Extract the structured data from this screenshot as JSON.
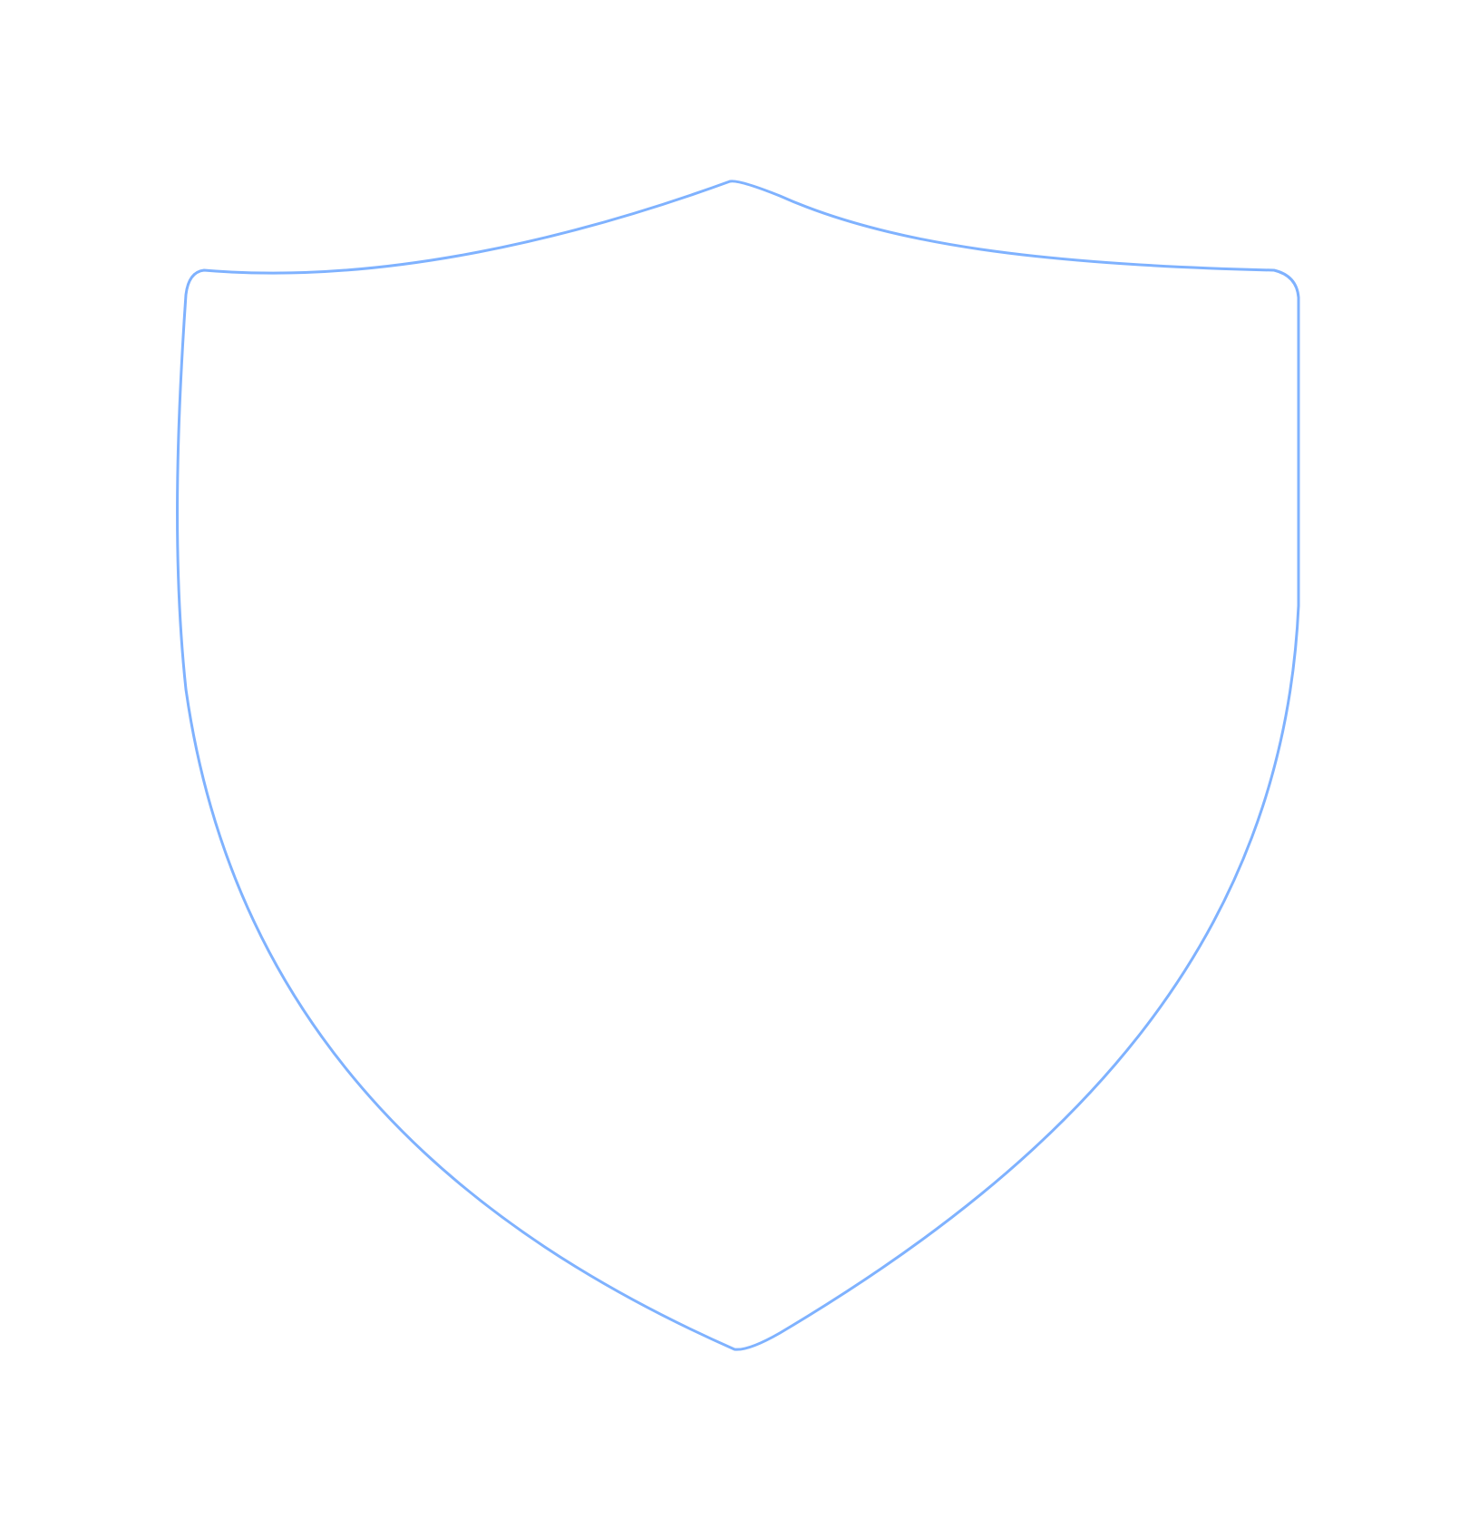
{
  "shield": {
    "icon": "shield-icon",
    "outline_color": "#7fb2ff",
    "fill_color": "#ffffff"
  }
}
